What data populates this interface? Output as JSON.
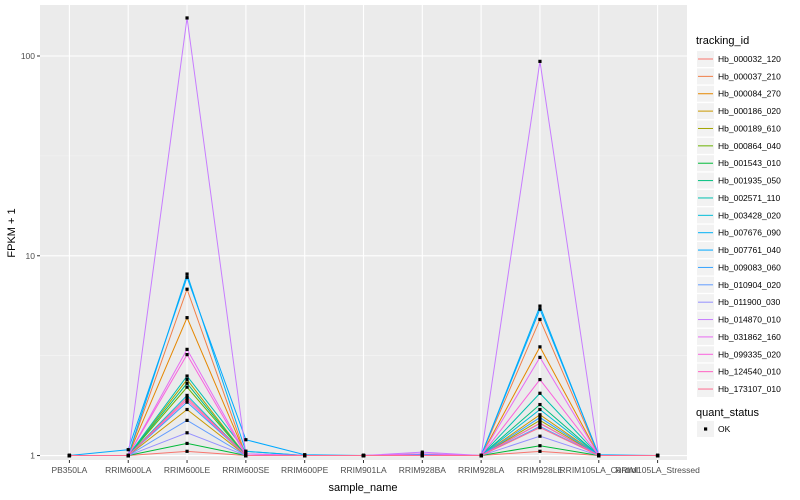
{
  "chart_data": {
    "type": "line",
    "title": "",
    "xlabel": "sample_name",
    "ylabel": "FPKM + 1",
    "y_scale": "log10",
    "ylim": [
      0.95,
      180
    ],
    "y_ticks": [
      {
        "value": 1,
        "label": "1"
      },
      {
        "value": 10,
        "label": "10"
      },
      {
        "value": 100,
        "label": "100"
      }
    ],
    "grid": true,
    "panel_background": "#ebebeb",
    "legend_position": "right",
    "categories": [
      "PB350LA",
      "RRIM600LA",
      "RRIM600LE",
      "RRIM600SE",
      "RRIM600PE",
      "RRIM901LA",
      "RRIM928BA",
      "RRIM928LA",
      "RRIM928LE",
      "RRIM105LA_Control",
      "RRIM105LA_Stressed"
    ],
    "series_legend_title": "tracking_id",
    "series": [
      {
        "name": "Hb_000032_120",
        "color": "#F8766D",
        "values": [
          1,
          1,
          1.05,
          1,
          1,
          1,
          1,
          1,
          1.05,
          1,
          1
        ]
      },
      {
        "name": "Hb_000037_210",
        "color": "#F07E47",
        "values": [
          1,
          1,
          6.8,
          1,
          1,
          1,
          1.02,
          1,
          4.8,
          1,
          1
        ]
      },
      {
        "name": "Hb_000084_270",
        "color": "#E58700",
        "values": [
          1,
          1,
          4.9,
          1,
          1,
          1,
          1,
          1,
          3.5,
          1,
          1
        ]
      },
      {
        "name": "Hb_000186_020",
        "color": "#C99800",
        "values": [
          1,
          1,
          1.7,
          1,
          1,
          1,
          1,
          1,
          1.6,
          1,
          1
        ]
      },
      {
        "name": "Hb_000189_610",
        "color": "#A3A500",
        "values": [
          1,
          1,
          2.4,
          1,
          1,
          1,
          1,
          1,
          1.5,
          1,
          1
        ]
      },
      {
        "name": "Hb_000864_040",
        "color": "#6BB100",
        "values": [
          1,
          1,
          2.2,
          1,
          1,
          1,
          1,
          1,
          1.45,
          1,
          1
        ]
      },
      {
        "name": "Hb_001543_010",
        "color": "#00BA38",
        "values": [
          1,
          1,
          1.15,
          1,
          1,
          1,
          1,
          1,
          1.12,
          1,
          1
        ]
      },
      {
        "name": "Hb_001935_050",
        "color": "#00BF7D",
        "values": [
          1,
          1,
          2.3,
          1,
          1,
          1,
          1,
          1,
          1.8,
          1,
          1
        ]
      },
      {
        "name": "Hb_002571_110",
        "color": "#00C0AF",
        "values": [
          1,
          1,
          2.5,
          1.05,
          1,
          1,
          1,
          1,
          2.05,
          1,
          1
        ]
      },
      {
        "name": "Hb_003428_020",
        "color": "#00BCD8",
        "values": [
          1,
          1,
          2.0,
          1,
          1,
          1,
          1,
          1,
          1.7,
          1,
          1
        ]
      },
      {
        "name": "Hb_007676_090",
        "color": "#00B0F6",
        "values": [
          1,
          1,
          8.1,
          1.05,
          1,
          1,
          1,
          1,
          5.6,
          1,
          1
        ]
      },
      {
        "name": "Hb_007761_040",
        "color": "#00A9FF",
        "values": [
          1,
          1.07,
          7.8,
          1.2,
          1.01,
          1,
          1.01,
          1,
          5.4,
          1.01,
          1
        ]
      },
      {
        "name": "Hb_009083_060",
        "color": "#35A2FF",
        "values": [
          1,
          1,
          1.85,
          1,
          1,
          1,
          1,
          1,
          1.55,
          1,
          1
        ]
      },
      {
        "name": "Hb_010904_020",
        "color": "#619CFF",
        "values": [
          1,
          1,
          1.5,
          1,
          1,
          1,
          1,
          1,
          1.4,
          1,
          1
        ]
      },
      {
        "name": "Hb_011900_030",
        "color": "#9590FF",
        "values": [
          1,
          1,
          1.3,
          1,
          1,
          1,
          1,
          1,
          1.25,
          1,
          1
        ]
      },
      {
        "name": "Hb_014870_010",
        "color": "#C77CFF",
        "values": [
          1,
          1,
          155,
          1.02,
          1,
          1,
          1.04,
          1,
          94,
          1,
          1
        ]
      },
      {
        "name": "Hb_031862_160",
        "color": "#E76BF3",
        "values": [
          1,
          1,
          3.4,
          1.02,
          1,
          1,
          1.02,
          1,
          3.1,
          1,
          1
        ]
      },
      {
        "name": "Hb_099335_020",
        "color": "#F962DD",
        "values": [
          1,
          1,
          3.2,
          1,
          1,
          1,
          1,
          1,
          2.4,
          1,
          1
        ]
      },
      {
        "name": "Hb_124540_010",
        "color": "#FF61C3",
        "values": [
          1,
          1,
          1.9,
          1,
          1,
          1,
          1,
          1,
          1.45,
          1,
          1
        ]
      },
      {
        "name": "Hb_173107_010",
        "color": "#FF6C91",
        "values": [
          1,
          1,
          1.95,
          1,
          1,
          1,
          1,
          1,
          1.38,
          1,
          1
        ]
      }
    ],
    "point_legend_title": "quant_status",
    "point_legend_items": [
      {
        "label": "OK",
        "color": "#000000"
      }
    ]
  }
}
